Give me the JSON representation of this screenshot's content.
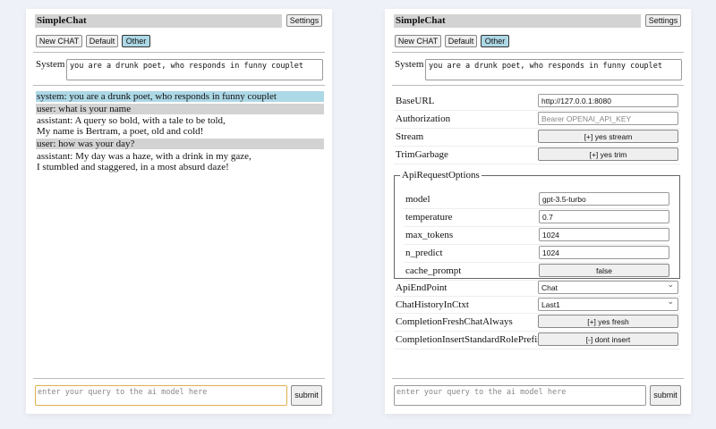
{
  "app": {
    "title": "SimpleChat",
    "settings_label": "Settings",
    "buttons": {
      "new_chat": "New CHAT",
      "default": "Default",
      "other": "Other"
    },
    "system_label": "System",
    "system_value": "you are a drunk poet, who responds in funny couplet",
    "query_placeholder": "enter your query to the ai model here",
    "submit_label": "submit"
  },
  "chat": [
    {
      "role": "system",
      "lines": [
        "system: you are a drunk poet, who responds in funny couplet"
      ]
    },
    {
      "role": "user",
      "lines": [
        "user: what is your name"
      ]
    },
    {
      "role": "assistant",
      "lines": [
        "assistant: A query so bold, with a tale to be told,",
        "My name is Bertram, a poet, old and cold!"
      ]
    },
    {
      "role": "user",
      "lines": [
        "user: how was your day?"
      ]
    },
    {
      "role": "assistant",
      "lines": [
        "assistant: My day was a haze, with a drink in my gaze,",
        "I stumbled and staggered, in a most absurd daze!"
      ]
    }
  ],
  "settings": {
    "baseurl": {
      "label": "BaseURL",
      "value": "http://127.0.0.1:8080"
    },
    "authorization": {
      "label": "Authorization",
      "placeholder": "Bearer OPENAI_API_KEY"
    },
    "stream": {
      "label": "Stream",
      "value": "[+] yes stream"
    },
    "trimgarbage": {
      "label": "TrimGarbage",
      "value": "[+] yes trim"
    },
    "apirequest": {
      "legend": "ApiRequestOptions",
      "model": {
        "label": "model",
        "value": "gpt-3.5-turbo"
      },
      "temperature": {
        "label": "temperature",
        "value": "0.7"
      },
      "max_tokens": {
        "label": "max_tokens",
        "value": "1024"
      },
      "n_predict": {
        "label": "n_predict",
        "value": "1024"
      },
      "cache_prompt": {
        "label": "cache_prompt",
        "value": "false"
      }
    },
    "apiendpoint": {
      "label": "ApiEndPoint",
      "value": "Chat"
    },
    "chathistory": {
      "label": "ChatHistoryInCtxt",
      "value": "Last1"
    },
    "freshchat": {
      "label": "CompletionFreshChatAlways",
      "value": "[+] yes fresh"
    },
    "insertprefix": {
      "label": "CompletionInsertStandardRolePrefix",
      "value": "[-] dont insert"
    }
  }
}
